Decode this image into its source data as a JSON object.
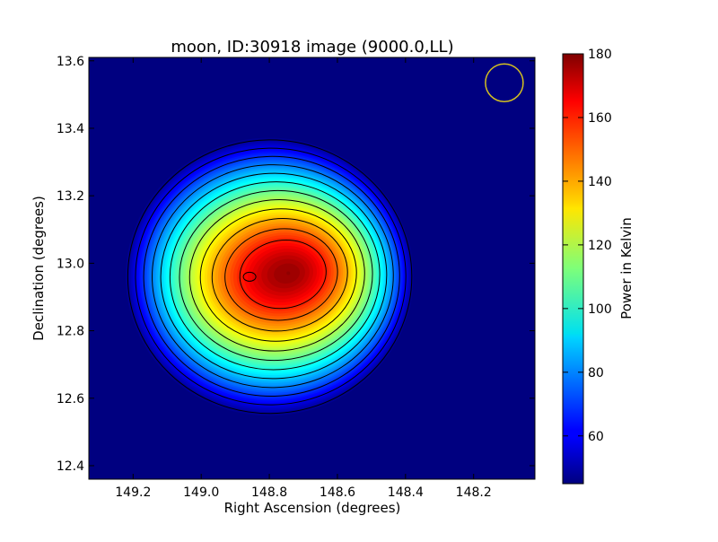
{
  "chart_data": {
    "type": "heatmap",
    "title": "moon, ID:30918 image (9000.0,LL)",
    "xlabel": "Right Ascension (degrees)",
    "ylabel": "Declination (degrees)",
    "colorbar_label": "Power in Kelvin",
    "xlim": [
      149.33,
      148.02
    ],
    "ylim": [
      12.36,
      13.61
    ],
    "x_ticks": [
      149.2,
      149.0,
      148.8,
      148.6,
      148.4,
      148.2
    ],
    "x_tick_labels": [
      "149.2",
      "149.0",
      "148.8",
      "148.6",
      "148.4",
      "148.2"
    ],
    "y_ticks": [
      12.4,
      12.6,
      12.8,
      13.0,
      13.2,
      13.4,
      13.6
    ],
    "y_tick_labels": [
      "12.4",
      "12.6",
      "12.8",
      "13.0",
      "13.2",
      "13.4",
      "13.6"
    ],
    "colorbar_range": [
      45,
      180
    ],
    "colorbar_ticks": [
      60,
      80,
      100,
      120,
      140,
      160,
      180
    ],
    "colorbar_tick_labels": [
      "60",
      "80",
      "100",
      "120",
      "140",
      "160",
      "180"
    ],
    "colormap": "jet",
    "background_level": 45,
    "source": {
      "name": "moon",
      "peak_ra": 148.8,
      "peak_dec": 12.96,
      "peak_value": 178
    },
    "contour_levels": [
      50,
      60,
      70,
      80,
      90,
      100,
      110,
      120,
      130,
      140,
      150,
      160,
      175
    ],
    "beam_marker": {
      "ra": 148.11,
      "dec": 13.535,
      "color": "#d4c020"
    }
  }
}
